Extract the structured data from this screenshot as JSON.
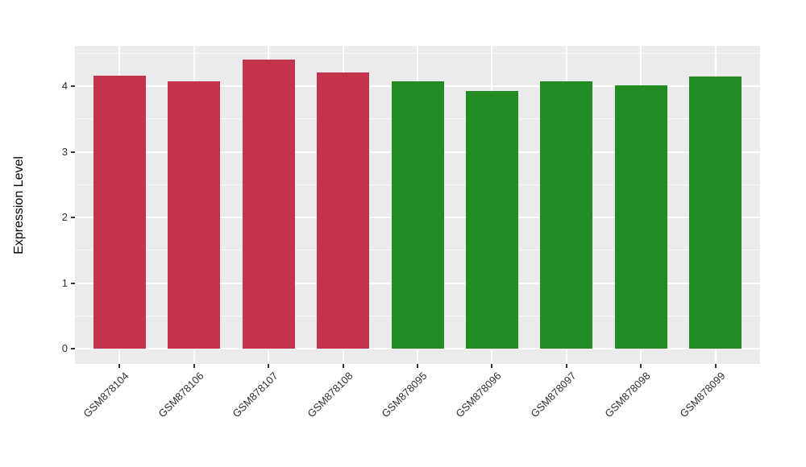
{
  "chart_data": {
    "type": "bar",
    "title": "",
    "xlabel": "",
    "ylabel": "Expression Level",
    "categories": [
      "GSM878104",
      "GSM878106",
      "GSM878107",
      "GSM878108",
      "GSM878095",
      "GSM878096",
      "GSM878097",
      "GSM878098",
      "GSM878099"
    ],
    "values": [
      4.16,
      4.08,
      4.4,
      4.21,
      4.08,
      3.93,
      4.07,
      4.01,
      4.15
    ],
    "bar_colors": [
      "#C3334D",
      "#C3334D",
      "#C3334D",
      "#C3334D",
      "#228B22",
      "#228B22",
      "#228B22",
      "#228B22",
      "#228B22"
    ],
    "color_groups": [
      {
        "color": "#C3334D",
        "categories": [
          "GSM878104",
          "GSM878106",
          "GSM878107",
          "GSM878108"
        ]
      },
      {
        "color": "#228B22",
        "categories": [
          "GSM878095",
          "GSM878096",
          "GSM878097",
          "GSM878098",
          "GSM878099"
        ]
      }
    ],
    "y_axis": {
      "ticks": [
        0,
        1,
        2,
        3,
        4
      ],
      "minor_ticks": [
        0.5,
        1.5,
        2.5,
        3.5,
        4.5
      ],
      "range": [
        -0.23,
        4.62
      ]
    },
    "legend": "none",
    "grid": "on",
    "panel_background": "#EBEBEB",
    "gridline_color": "#FFFFFF",
    "tick_label_color": "#303030"
  }
}
